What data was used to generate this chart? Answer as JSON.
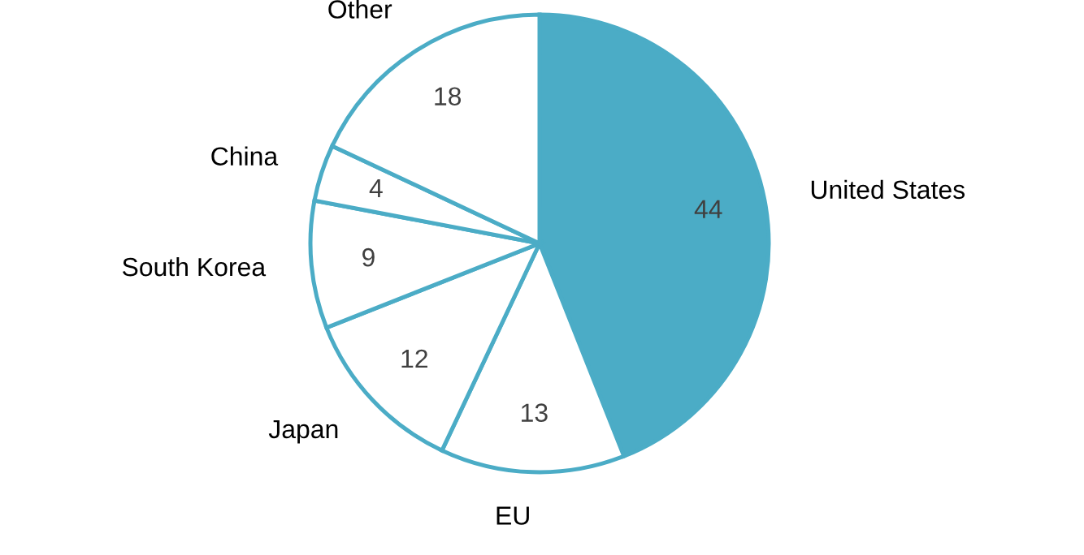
{
  "chart_data": {
    "type": "pie",
    "categories": [
      "United States",
      "EU",
      "Japan",
      "South Korea",
      "China",
      "Other"
    ],
    "values": [
      44,
      13,
      12,
      9,
      4,
      18
    ],
    "colors": [
      "#4bacc6",
      "#ffffff",
      "#ffffff",
      "#ffffff",
      "#ffffff",
      "#ffffff"
    ],
    "data_labels": true,
    "legend": false
  }
}
